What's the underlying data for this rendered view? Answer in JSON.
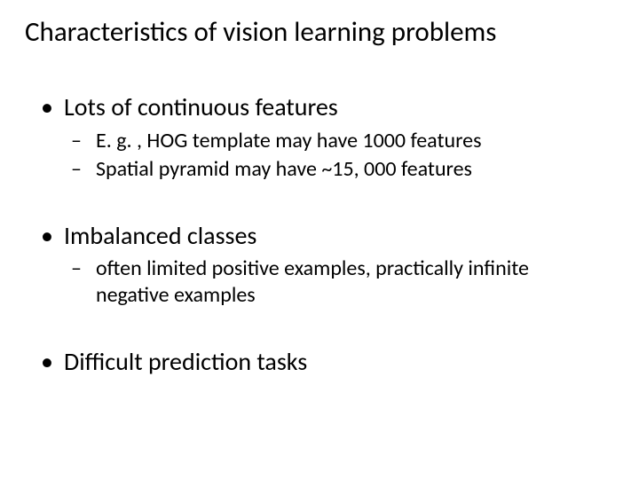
{
  "title": "Characteristics of vision learning problems",
  "bullets": {
    "b1": {
      "text": "Lots of continuous features",
      "sub1": "E. g. , HOG template may have 1000 features",
      "sub2": "Spatial pyramid may have ~15, 000 features"
    },
    "b2": {
      "text": "Imbalanced classes",
      "sub1": "often limited positive examples, practically infinite negative examples"
    },
    "b3": {
      "text": "Difficult prediction tasks"
    }
  },
  "styling": {
    "background_color": "#ffffff",
    "text_color": "#000000",
    "title_fontsize": 31,
    "l1_fontsize": 28,
    "l2_fontsize": 24,
    "font_family": "Calibri",
    "l1_marker": "•",
    "l2_marker": "–"
  }
}
